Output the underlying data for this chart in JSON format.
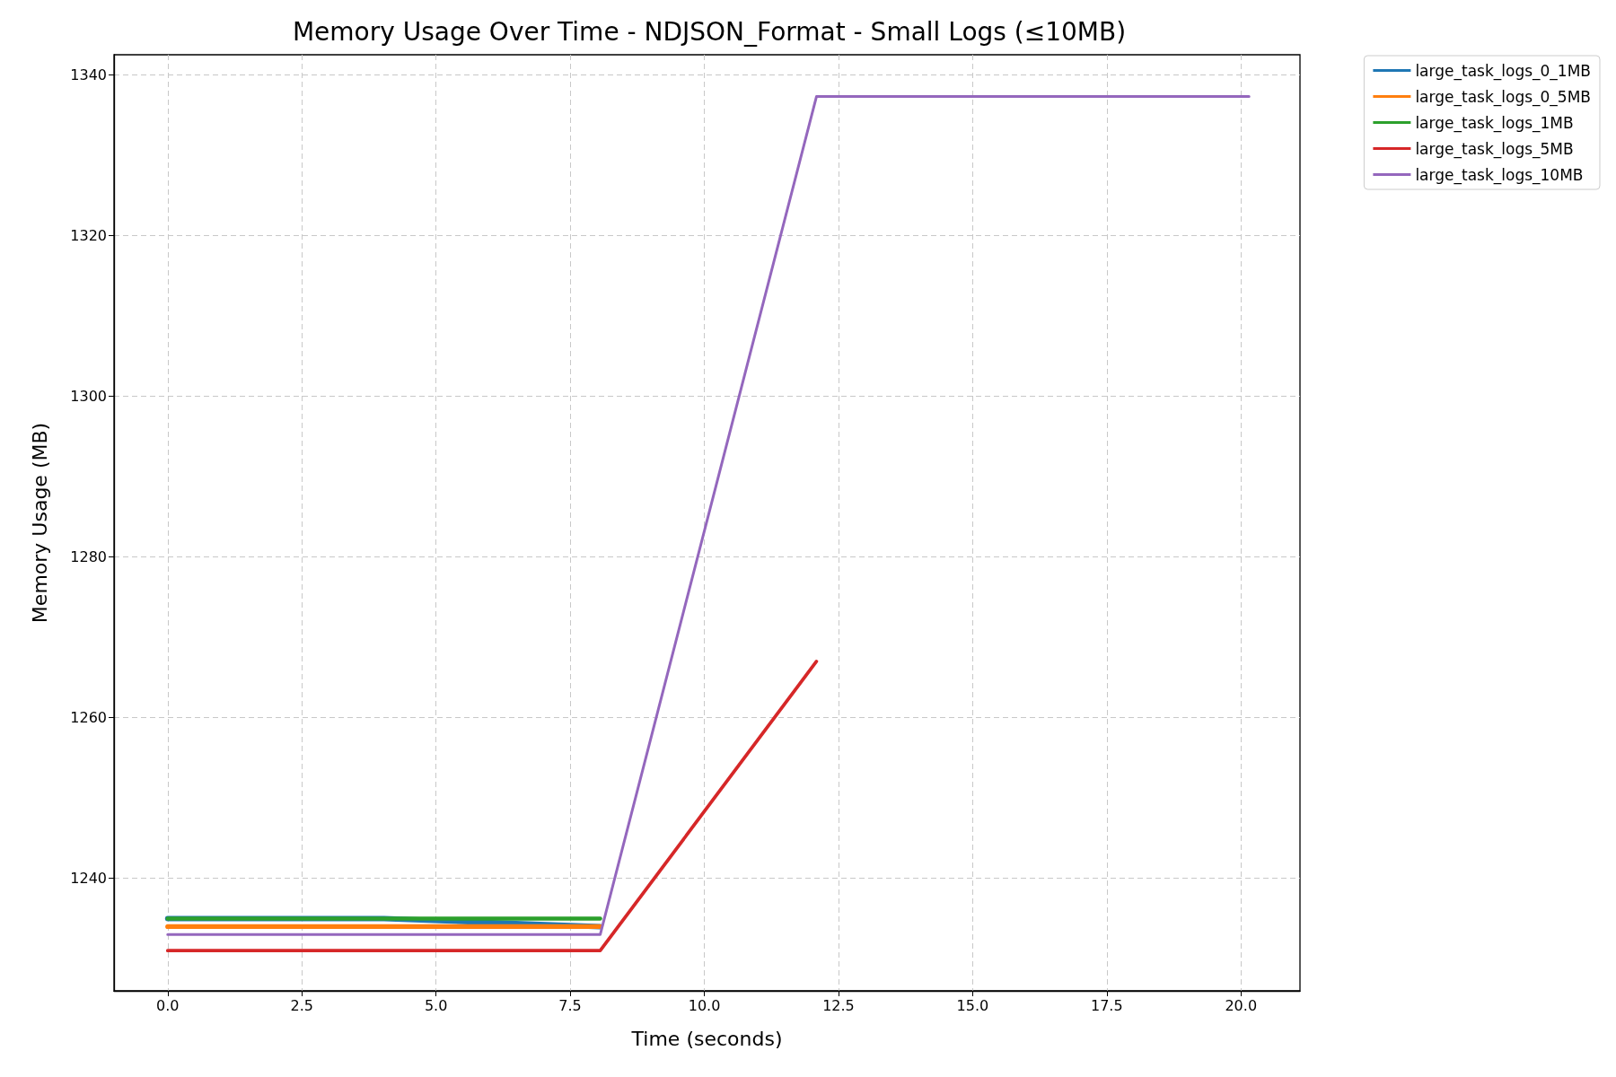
{
  "chart_data": {
    "type": "line",
    "title": "Memory Usage Over Time - NDJSON_Format - Small Logs (≤10MB)",
    "xlabel": "Time (seconds)",
    "ylabel": "Memory Usage (MB)",
    "series": [
      {
        "name": "large_task_logs_0_1MB",
        "color": "#1f77b4",
        "x": [
          0,
          4.03,
          8.06
        ],
        "values": [
          1235,
          1235,
          1234
        ]
      },
      {
        "name": "large_task_logs_0_5MB",
        "color": "#ff7f0e",
        "x": [
          0,
          4.03,
          8.06
        ],
        "values": [
          1234,
          1234,
          1234
        ]
      },
      {
        "name": "large_task_logs_1MB",
        "color": "#2ca02c",
        "x": [
          0,
          4.03,
          8.06
        ],
        "values": [
          1235,
          1235,
          1235
        ]
      },
      {
        "name": "large_task_logs_5MB",
        "color": "#d62728",
        "x": [
          0,
          4.03,
          8.06,
          12.09
        ],
        "values": [
          1231,
          1231,
          1231,
          1267
        ]
      },
      {
        "name": "large_task_logs_10MB",
        "color": "#9467bd",
        "x": [
          0,
          4.03,
          8.06,
          12.09,
          16.12,
          20.15
        ],
        "values": [
          1233,
          1233,
          1233,
          1337.3,
          1337.3,
          1337.3
        ]
      }
    ],
    "xlim": [
      -1,
      21.1
    ],
    "xticks": [
      {
        "value": 0,
        "label": "0.0"
      },
      {
        "value": 2.5,
        "label": "2.5"
      },
      {
        "value": 5,
        "label": "5.0"
      },
      {
        "value": 7.5,
        "label": "7.5"
      },
      {
        "value": 10,
        "label": "10.0"
      },
      {
        "value": 12.5,
        "label": "12.5"
      },
      {
        "value": 15,
        "label": "15.0"
      },
      {
        "value": 17.5,
        "label": "17.5"
      },
      {
        "value": 20,
        "label": "20.0"
      }
    ],
    "ylim": [
      1226,
      1342.5
    ],
    "yticks": [
      1240,
      1260,
      1280,
      1300,
      1320,
      1340
    ],
    "grid": true,
    "legend": "top right",
    "line_style": "solid"
  }
}
